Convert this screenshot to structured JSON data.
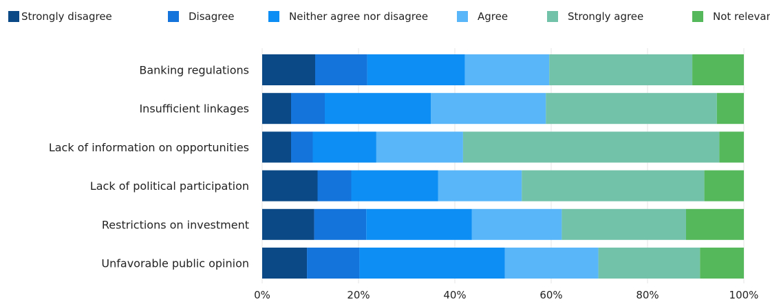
{
  "chart_data": {
    "type": "bar",
    "orientation": "horizontal",
    "stacked": true,
    "percent_stacked": true,
    "categories": [
      "Banking regulations",
      "Insufficient linkages",
      "Lack of information on opportunities",
      "Lack of political participation",
      "Restrictions on investment",
      "Unfavorable public opinion"
    ],
    "series": [
      {
        "name": "Strongly disagree",
        "color": "#0b4886",
        "values": [
          11,
          6,
          6,
          11.5,
          10.8,
          9.3
        ]
      },
      {
        "name": "Disagree",
        "color": "#1474db",
        "values": [
          10.8,
          7,
          4.5,
          7,
          10.8,
          10.9
        ]
      },
      {
        "name": "Neither agree nor disagree",
        "color": "#0d8ef5",
        "values": [
          20.3,
          22,
          13.2,
          18,
          21.9,
          30.2
        ]
      },
      {
        "name": "Agree",
        "color": "#58b6f9",
        "values": [
          17.5,
          23.9,
          18,
          17.4,
          18.7,
          19.4
        ]
      },
      {
        "name": "Strongly agree",
        "color": "#72c2a9",
        "values": [
          29.7,
          35.5,
          53.2,
          37.9,
          25.8,
          21.1
        ]
      },
      {
        "name": "Not relevant",
        "color": "#55b85a",
        "values": [
          10.7,
          5.6,
          5.1,
          8.2,
          12,
          9.1
        ]
      }
    ],
    "xticks": [
      "0%",
      "20%",
      "40%",
      "60%",
      "80%",
      "100%"
    ],
    "xlim": [
      0,
      100
    ],
    "grid": "vertical",
    "legend": "top"
  }
}
